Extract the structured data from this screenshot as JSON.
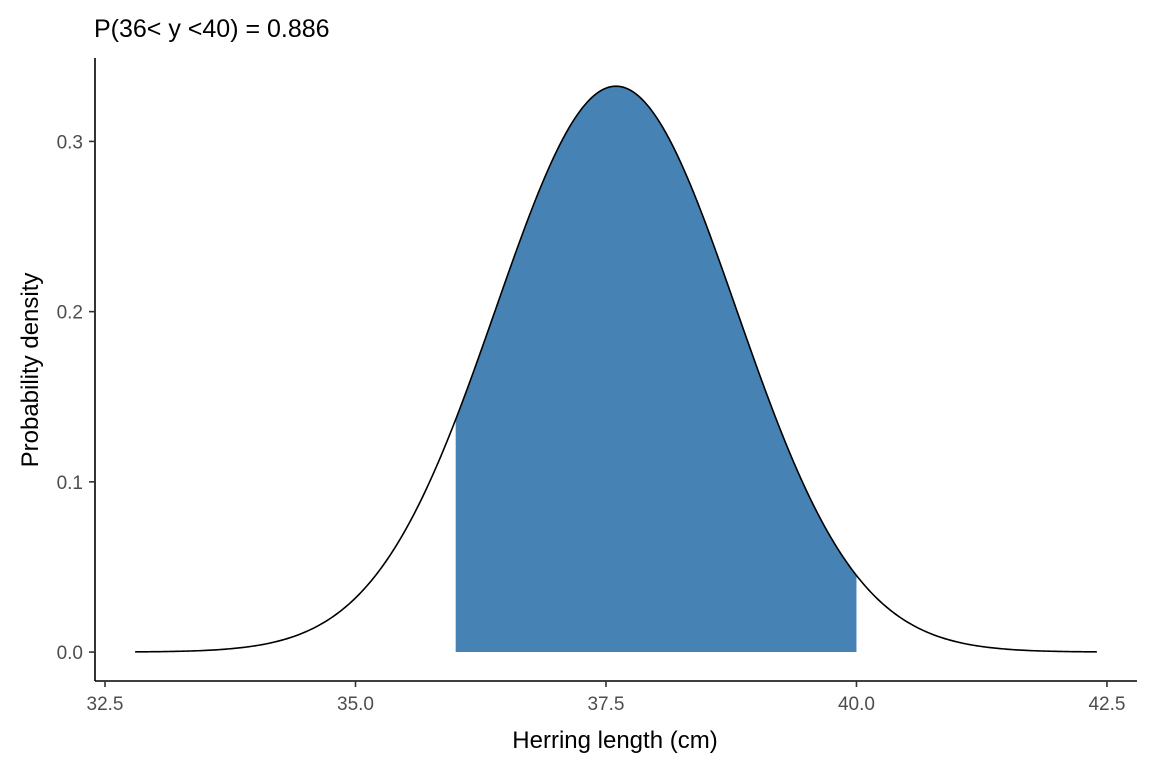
{
  "chart_data": {
    "type": "area",
    "title": "P(36< y <40) = 0.886",
    "xlabel": "Herring length (cm)",
    "ylabel": "Probability density",
    "xlim": [
      32.4,
      42.8
    ],
    "ylim": [
      -0.017,
      0.349
    ],
    "x_ticks": [
      32.5,
      35.0,
      37.5,
      40.0,
      42.5
    ],
    "x_tick_labels": [
      "32.5",
      "35.0",
      "37.5",
      "40.0",
      "42.5"
    ],
    "y_ticks": [
      0.0,
      0.1,
      0.2,
      0.3
    ],
    "y_tick_labels": [
      "0.0",
      "0.1",
      "0.2",
      "0.3"
    ],
    "distribution": {
      "family": "normal",
      "mean": 37.6,
      "sd": 1.2,
      "x_range": [
        32.8,
        42.4
      ]
    },
    "shaded_interval": [
      36.0,
      40.0
    ],
    "probability": 0.886,
    "shade_color": "#4682B4",
    "curve_color": "#000000",
    "grid": false
  }
}
